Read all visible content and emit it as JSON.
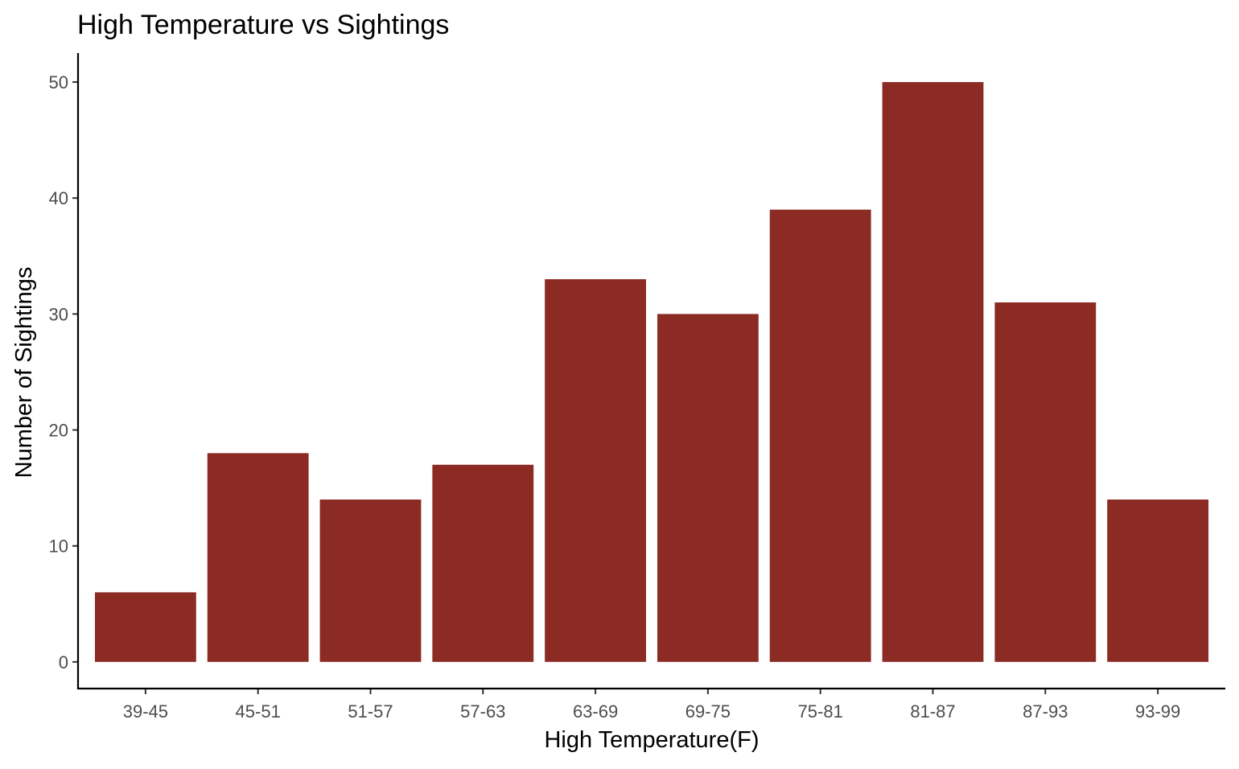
{
  "chart_data": {
    "type": "bar",
    "title": "High Temperature vs Sightings",
    "xlabel": "High Temperature(F)",
    "ylabel": "Number of Sightings",
    "categories": [
      "39-45",
      "45-51",
      "51-57",
      "57-63",
      "63-69",
      "69-75",
      "75-81",
      "81-87",
      "87-93",
      "93-99"
    ],
    "values": [
      6,
      18,
      14,
      17,
      33,
      30,
      39,
      50,
      31,
      14
    ],
    "yticks": [
      0,
      10,
      20,
      30,
      40,
      50
    ],
    "ylim": [
      -2.3,
      52.5
    ],
    "grid": false,
    "legend": "none",
    "bar_color": "#8B2B24"
  }
}
